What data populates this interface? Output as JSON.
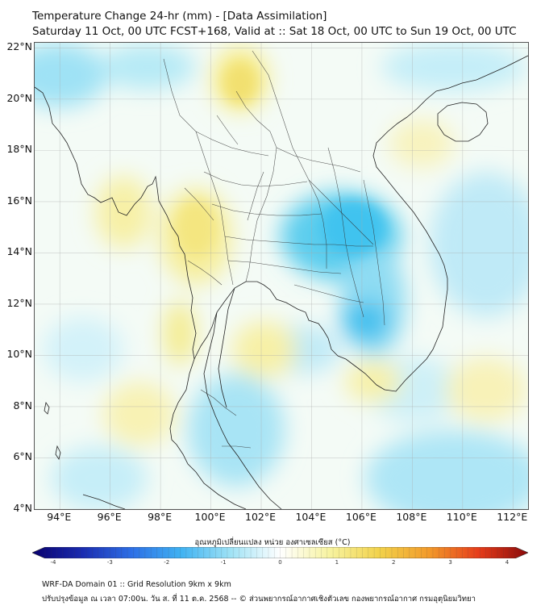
{
  "title": {
    "line1": "Temperature Change 24-hr (mm) - [Data Assimilation]",
    "line2": "Saturday 11 Oct, 00 UTC FCST+168, Valid at :: Sat 18 Oct, 00 UTC to Sun 19 Oct, 00 UTC"
  },
  "axes": {
    "lat_labels": [
      "22°N",
      "20°N",
      "18°N",
      "16°N",
      "14°N",
      "12°N",
      "10°N",
      "8°N",
      "6°N",
      "4°N"
    ],
    "lon_labels": [
      "94°E",
      "96°E",
      "98°E",
      "100°E",
      "102°E",
      "104°E",
      "106°E",
      "108°E",
      "110°E",
      "112°E"
    ],
    "lat_range": [
      4,
      22.2
    ],
    "lon_range": [
      93,
      112.6
    ]
  },
  "colorbar": {
    "title": "อุณหภูมิเปลี่ยนแปลง หน่วย องศาเซลเซียส (°C)",
    "ticks": [
      "-4",
      "-3",
      "-2",
      "-1",
      "0",
      "1",
      "2",
      "3",
      "4"
    ],
    "range": [
      -4,
      4
    ],
    "colors": [
      "#08006e",
      "#1a2bb0",
      "#2d6fe6",
      "#3fb2f2",
      "#9fe2f5",
      "#ffffff",
      "#f7f3a0",
      "#f2d24a",
      "#f29a2a",
      "#e63c1a",
      "#8a0a0a"
    ]
  },
  "footer": {
    "line1": "WRF-DA Domain 01 :: Grid Resolution 9km x 9km",
    "line2": "ปรับปรุงข้อมูล ณ เวลา 07:00น. วัน ส. ที่ 11 ต.ค. 2568 -- © ส่วนพยากรณ์อากาศเชิงตัวเลข กองพยากรณ์อากาศ กรมอุตุนิยมวิทยา"
  },
  "field": {
    "blue_regions": [
      "upper Myanmar coast",
      "northeast Thailand",
      "Cambodia",
      "Gulf of Thailand",
      "South China Sea"
    ],
    "yellow_regions": [
      "northern Thailand",
      "western Thailand",
      "Andaman Sea",
      "Vietnam coast"
    ]
  }
}
